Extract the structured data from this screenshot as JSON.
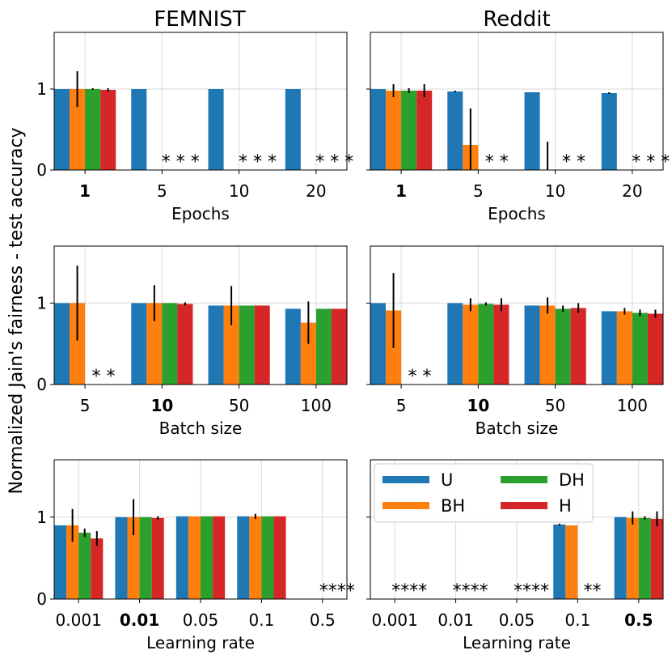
{
  "figure": {
    "ylabel": "Normalized Jain's fairness - test accuracy",
    "legend": {
      "entries": [
        {
          "key": "U",
          "label": "U"
        },
        {
          "key": "DH",
          "label": "DH"
        },
        {
          "key": "BH",
          "label": "BH"
        },
        {
          "key": "H",
          "label": "H"
        }
      ],
      "placement": "upper-left of bottom-right panel"
    }
  },
  "colors": {
    "U": "#1f77b4",
    "BH": "#ff7f0e",
    "DH": "#2ca02c",
    "H": "#d62728"
  },
  "chart_data": [
    {
      "type": "bar",
      "column_title": "FEMNIST",
      "xlabel": "Epochs",
      "ylim": [
        0,
        1.7
      ],
      "yticks": [
        "0",
        "1"
      ],
      "grid": true,
      "categories": [
        "1",
        "5",
        "10",
        "20"
      ],
      "bold_category": 0,
      "series": [
        {
          "name": "U",
          "values": [
            1.0,
            1.0,
            1.0,
            1.0
          ],
          "errors": [
            0.0,
            0.0,
            0.0,
            0.0
          ]
        },
        {
          "name": "BH",
          "values": [
            1.0,
            0,
            0,
            0
          ],
          "errors": [
            0.22,
            0,
            0,
            0
          ]
        },
        {
          "name": "DH",
          "values": [
            1.0,
            0,
            0,
            0
          ],
          "errors": [
            0.01,
            0,
            0,
            0
          ]
        },
        {
          "name": "H",
          "values": [
            0.99,
            0,
            0,
            0
          ],
          "errors": [
            0.02,
            0,
            0,
            0
          ]
        }
      ],
      "annotations": [
        {
          "category": 1,
          "text": "* * *"
        },
        {
          "category": 2,
          "text": "* * *"
        },
        {
          "category": 3,
          "text": "* * *"
        }
      ]
    },
    {
      "type": "bar",
      "column_title": "Reddit",
      "xlabel": "Epochs",
      "ylim": [
        0,
        1.7
      ],
      "yticks": [
        "0",
        "1"
      ],
      "grid": true,
      "categories": [
        "1",
        "5",
        "10",
        "20"
      ],
      "bold_category": 0,
      "series": [
        {
          "name": "U",
          "values": [
            1.0,
            0.97,
            0.96,
            0.95
          ],
          "errors": [
            0.0,
            0.01,
            0.0,
            0.01
          ]
        },
        {
          "name": "BH",
          "values": [
            0.98,
            0.31,
            0,
            0
          ],
          "errors": [
            0.08,
            0.45,
            0.35,
            0
          ]
        },
        {
          "name": "DH",
          "values": [
            0.98,
            0,
            0,
            0
          ],
          "errors": [
            0.03,
            0,
            0,
            0
          ]
        },
        {
          "name": "H",
          "values": [
            0.98,
            0,
            0,
            0
          ],
          "errors": [
            0.08,
            0,
            0,
            0
          ]
        }
      ],
      "annotations": [
        {
          "category": 1,
          "text": "* *"
        },
        {
          "category": 2,
          "text": "* *"
        },
        {
          "category": 3,
          "text": "* * *"
        }
      ]
    },
    {
      "type": "bar",
      "xlabel": "Batch size",
      "ylim": [
        0,
        1.7
      ],
      "yticks": [
        "0",
        "1"
      ],
      "grid": true,
      "categories": [
        "5",
        "10",
        "50",
        "100"
      ],
      "bold_category": 1,
      "series": [
        {
          "name": "U",
          "values": [
            1.0,
            1.0,
            0.97,
            0.93
          ],
          "errors": [
            0.0,
            0.0,
            0.0,
            0.0
          ]
        },
        {
          "name": "BH",
          "values": [
            1.0,
            1.0,
            0.97,
            0.76
          ],
          "errors": [
            0.46,
            0.22,
            0.24,
            0.26
          ]
        },
        {
          "name": "DH",
          "values": [
            0,
            1.0,
            0.97,
            0.93
          ],
          "errors": [
            0,
            0.0,
            0.0,
            0.0
          ]
        },
        {
          "name": "H",
          "values": [
            0,
            0.99,
            0.97,
            0.93
          ],
          "errors": [
            0,
            0.02,
            0.0,
            0.0
          ]
        }
      ],
      "annotations": [
        {
          "category": 0,
          "text": "* *"
        }
      ]
    },
    {
      "type": "bar",
      "xlabel": "Batch size",
      "ylim": [
        0,
        1.7
      ],
      "yticks": [
        "0",
        "1"
      ],
      "grid": true,
      "categories": [
        "5",
        "10",
        "50",
        "100"
      ],
      "bold_category": 1,
      "series": [
        {
          "name": "U",
          "values": [
            1.0,
            1.0,
            0.97,
            0.9
          ],
          "errors": [
            0.0,
            0.0,
            0.0,
            0.0
          ]
        },
        {
          "name": "BH",
          "values": [
            0.91,
            0.98,
            0.97,
            0.9
          ],
          "errors": [
            0.46,
            0.08,
            0.1,
            0.04
          ]
        },
        {
          "name": "DH",
          "values": [
            0,
            0.99,
            0.93,
            0.88
          ],
          "errors": [
            0,
            0.02,
            0.04,
            0.04
          ]
        },
        {
          "name": "H",
          "values": [
            0,
            0.98,
            0.94,
            0.87
          ],
          "errors": [
            0,
            0.08,
            0.06,
            0.05
          ]
        }
      ],
      "annotations": [
        {
          "category": 0,
          "text": "* *"
        }
      ]
    },
    {
      "type": "bar",
      "xlabel": "Learning rate",
      "ylim": [
        0,
        1.7
      ],
      "yticks": [
        "0",
        "1"
      ],
      "grid": true,
      "categories": [
        "0.001",
        "0.01",
        "0.05",
        "0.1",
        "0.5"
      ],
      "bold_category": 1,
      "series": [
        {
          "name": "U",
          "values": [
            0.9,
            1.0,
            1.01,
            1.01,
            0
          ],
          "errors": [
            0.0,
            0.0,
            0.0,
            0.0,
            0
          ]
        },
        {
          "name": "BH",
          "values": [
            0.9,
            1.0,
            1.01,
            1.01,
            0
          ],
          "errors": [
            0.2,
            0.22,
            0.0,
            0.03,
            0
          ]
        },
        {
          "name": "DH",
          "values": [
            0.81,
            1.0,
            1.01,
            1.01,
            0
          ],
          "errors": [
            0.05,
            0.0,
            0.0,
            0.0,
            0
          ]
        },
        {
          "name": "H",
          "values": [
            0.74,
            0.99,
            1.01,
            1.01,
            0
          ],
          "errors": [
            0.09,
            0.02,
            0.0,
            0.0,
            0
          ]
        }
      ],
      "annotations": [
        {
          "category": 4,
          "text": "****"
        }
      ]
    },
    {
      "type": "bar",
      "xlabel": "Learning rate",
      "ylim": [
        0,
        1.7
      ],
      "yticks": [
        "0",
        "1"
      ],
      "grid": true,
      "categories": [
        "0.001",
        "0.01",
        "0.05",
        "0.1",
        "0.5"
      ],
      "bold_category": 4,
      "series": [
        {
          "name": "U",
          "values": [
            0,
            0,
            0,
            0.91,
            1.0
          ],
          "errors": [
            0,
            0,
            0,
            0.01,
            0.0
          ]
        },
        {
          "name": "BH",
          "values": [
            0,
            0,
            0,
            0.9,
            0.99
          ],
          "errors": [
            0,
            0,
            0,
            0.0,
            0.08
          ]
        },
        {
          "name": "DH",
          "values": [
            0,
            0,
            0,
            0,
            0.99
          ],
          "errors": [
            0,
            0,
            0,
            0,
            0.02
          ]
        },
        {
          "name": "H",
          "values": [
            0,
            0,
            0,
            0,
            0.98
          ],
          "errors": [
            0,
            0,
            0,
            0,
            0.09
          ]
        }
      ],
      "annotations": [
        {
          "category": 0,
          "text": "****"
        },
        {
          "category": 1,
          "text": "****"
        },
        {
          "category": 2,
          "text": "****"
        },
        {
          "category": 3,
          "text": "**"
        }
      ]
    }
  ]
}
